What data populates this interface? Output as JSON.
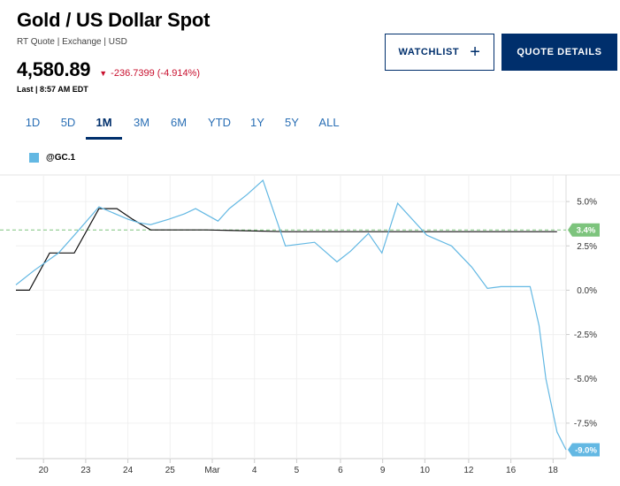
{
  "header": {
    "title": "Gold / US Dollar Spot",
    "meta": "RT Quote | Exchange | USD",
    "price": "4,580.89",
    "change": "-236.7399 (-4.914%)",
    "last_updated": "Last | 8:57 AM EDT"
  },
  "buttons": {
    "watchlist_label": "WATCHLIST",
    "quote_details_label": "QUOTE DETAILS"
  },
  "tabs": [
    {
      "label": "1D"
    },
    {
      "label": "5D"
    },
    {
      "label": "1M"
    },
    {
      "label": "3M"
    },
    {
      "label": "6M"
    },
    {
      "label": "YTD"
    },
    {
      "label": "1Y"
    },
    {
      "label": "5Y"
    },
    {
      "label": "ALL"
    }
  ],
  "active_tab": "1M",
  "colors": {
    "primary_navy": "#002f6c",
    "tab_blue": "#2a6fb5",
    "negative_red": "#c8102e",
    "series_line": "#63b8e3",
    "reference_green": "#7dc47d"
  },
  "chart_data": {
    "type": "line",
    "legend": [
      "@GC.1"
    ],
    "x_ticks": [
      "20",
      "23",
      "24",
      "25",
      "Mar",
      "4",
      "5",
      "6",
      "9",
      "10",
      "12",
      "16",
      "18"
    ],
    "y_ticks": [
      "5.0%",
      "2.5%",
      "0.0%",
      "-2.5%",
      "-5.0%",
      "-7.5%"
    ],
    "ylim": [
      -9.5,
      6.5
    ],
    "series": [
      {
        "name": "@GC.1",
        "x": [
          0,
          0.8,
          1.9,
          2.6,
          3.7,
          5,
          5.5,
          6,
          6.8,
          7.5,
          8,
          9,
          9.5,
          10.3,
          11,
          12,
          13.3,
          14.3,
          14.9,
          15.7,
          16.3,
          17,
          18.3,
          19.4,
          20.3,
          21,
          21.6,
          22.9,
          23.3,
          23.6,
          24.1,
          24.5
        ],
        "y": [
          0.3,
          1.1,
          2.1,
          3.1,
          4.7,
          4.0,
          3.8,
          3.7,
          4.0,
          4.3,
          4.6,
          3.9,
          4.6,
          5.4,
          6.2,
          2.5,
          2.7,
          1.6,
          2.2,
          3.2,
          2.1,
          4.9,
          3.1,
          2.5,
          1.3,
          0.1,
          0.2,
          0.2,
          -2.0,
          -5.0,
          -8.0,
          -9.0
        ]
      },
      {
        "name": "reference",
        "x": [
          0,
          0.6,
          1.5,
          2.6,
          3.7,
          4.5,
          5.2,
          6,
          7,
          8.5,
          12,
          24.1
        ],
        "y": [
          0,
          0,
          2.1,
          2.1,
          4.6,
          4.6,
          4.0,
          3.4,
          3.4,
          3.4,
          3.3,
          3.3
        ]
      }
    ],
    "reference_line": 3.4,
    "badges": {
      "reference": "3.4%",
      "last": "-9.0%"
    }
  }
}
